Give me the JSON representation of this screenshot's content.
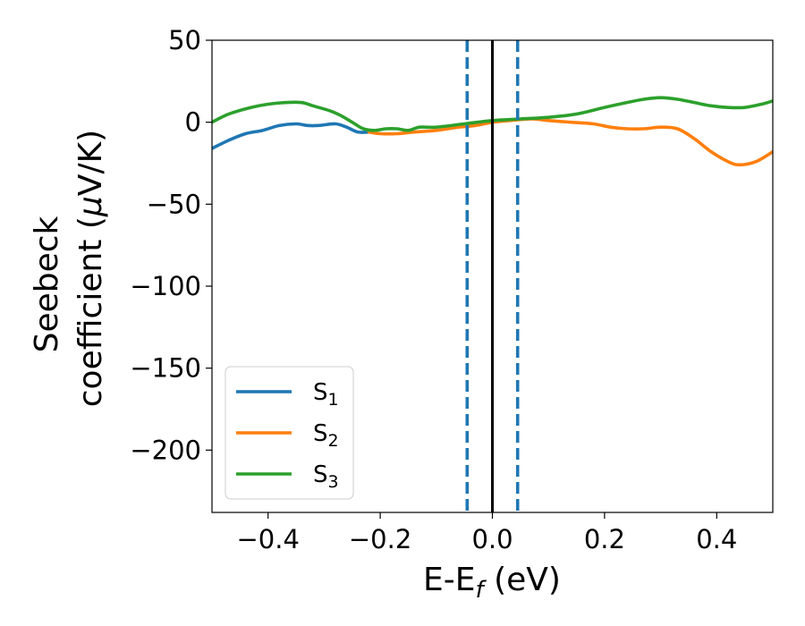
{
  "chart_data": {
    "type": "line",
    "xlabel": "E-E",
    "xlabel_sub": "f",
    "xlabel_unit": " (eV)",
    "ylabel_line1": "Seebeck",
    "ylabel_line2": "coefficient  (",
    "ylabel_mu": "μ",
    "ylabel_unit": "V/K)",
    "xlim": [
      -0.5,
      0.5
    ],
    "ylim": [
      -238,
      50
    ],
    "x_ticks": [
      -0.4,
      -0.2,
      0.0,
      0.2,
      0.4
    ],
    "x_tick_labels": [
      "−0.4",
      "−0.2",
      "0.0",
      "0.2",
      "0.4"
    ],
    "y_ticks": [
      50,
      0,
      -50,
      -100,
      -150,
      -200
    ],
    "y_tick_labels": [
      "50",
      "0",
      "−50",
      "−100",
      "−150",
      "−200"
    ],
    "grid": false,
    "legend_position": "lower-left",
    "vlines": [
      {
        "x": 0.0,
        "style": "solid",
        "color": "#000000"
      },
      {
        "x": -0.045,
        "style": "dashed",
        "color": "#1f77b4"
      },
      {
        "x": 0.045,
        "style": "dashed",
        "color": "#1f77b4"
      }
    ],
    "series": [
      {
        "name": "S",
        "sub": "1",
        "color": "#1f77b4",
        "x": [
          -0.5,
          -0.47,
          -0.44,
          -0.41,
          -0.38,
          -0.35,
          -0.33,
          -0.31,
          -0.28,
          -0.26,
          -0.24,
          -0.22
        ],
        "y": [
          -16,
          -11,
          -7,
          -5,
          -2,
          -1,
          -2,
          -2,
          -1,
          -3,
          -6,
          -6
        ]
      },
      {
        "name": "S",
        "sub": "2",
        "color": "#ff7f0e",
        "x": [
          -0.22,
          -0.2,
          -0.17,
          -0.14,
          -0.1,
          -0.06,
          -0.03,
          0.0,
          0.03,
          0.07,
          0.1,
          0.14,
          0.18,
          0.21,
          0.24,
          0.27,
          0.3,
          0.33,
          0.36,
          0.39,
          0.42,
          0.44,
          0.47,
          0.5
        ],
        "y": [
          -6,
          -7,
          -7,
          -6,
          -5,
          -3,
          -2,
          0,
          1,
          2,
          1,
          0,
          -1,
          -3,
          -4,
          -4,
          -3,
          -4,
          -10,
          -18,
          -24,
          -26,
          -24,
          -18
        ]
      },
      {
        "name": "S",
        "sub": "3",
        "color": "#2ca02c",
        "x": [
          -0.5,
          -0.47,
          -0.43,
          -0.4,
          -0.37,
          -0.34,
          -0.32,
          -0.29,
          -0.27,
          -0.25,
          -0.23,
          -0.21,
          -0.19,
          -0.17,
          -0.15,
          -0.13,
          -0.1,
          -0.05,
          0.0,
          0.05,
          0.1,
          0.15,
          0.2,
          0.24,
          0.27,
          0.3,
          0.33,
          0.36,
          0.39,
          0.42,
          0.45,
          0.48,
          0.5
        ],
        "y": [
          0,
          5,
          9,
          11,
          12,
          12,
          10,
          7,
          4,
          0,
          -4,
          -5,
          -4,
          -4,
          -5,
          -3,
          -3,
          -1,
          1,
          2,
          3,
          5,
          9,
          12,
          14,
          15,
          14,
          12,
          10,
          9,
          9,
          11,
          13
        ]
      }
    ]
  }
}
